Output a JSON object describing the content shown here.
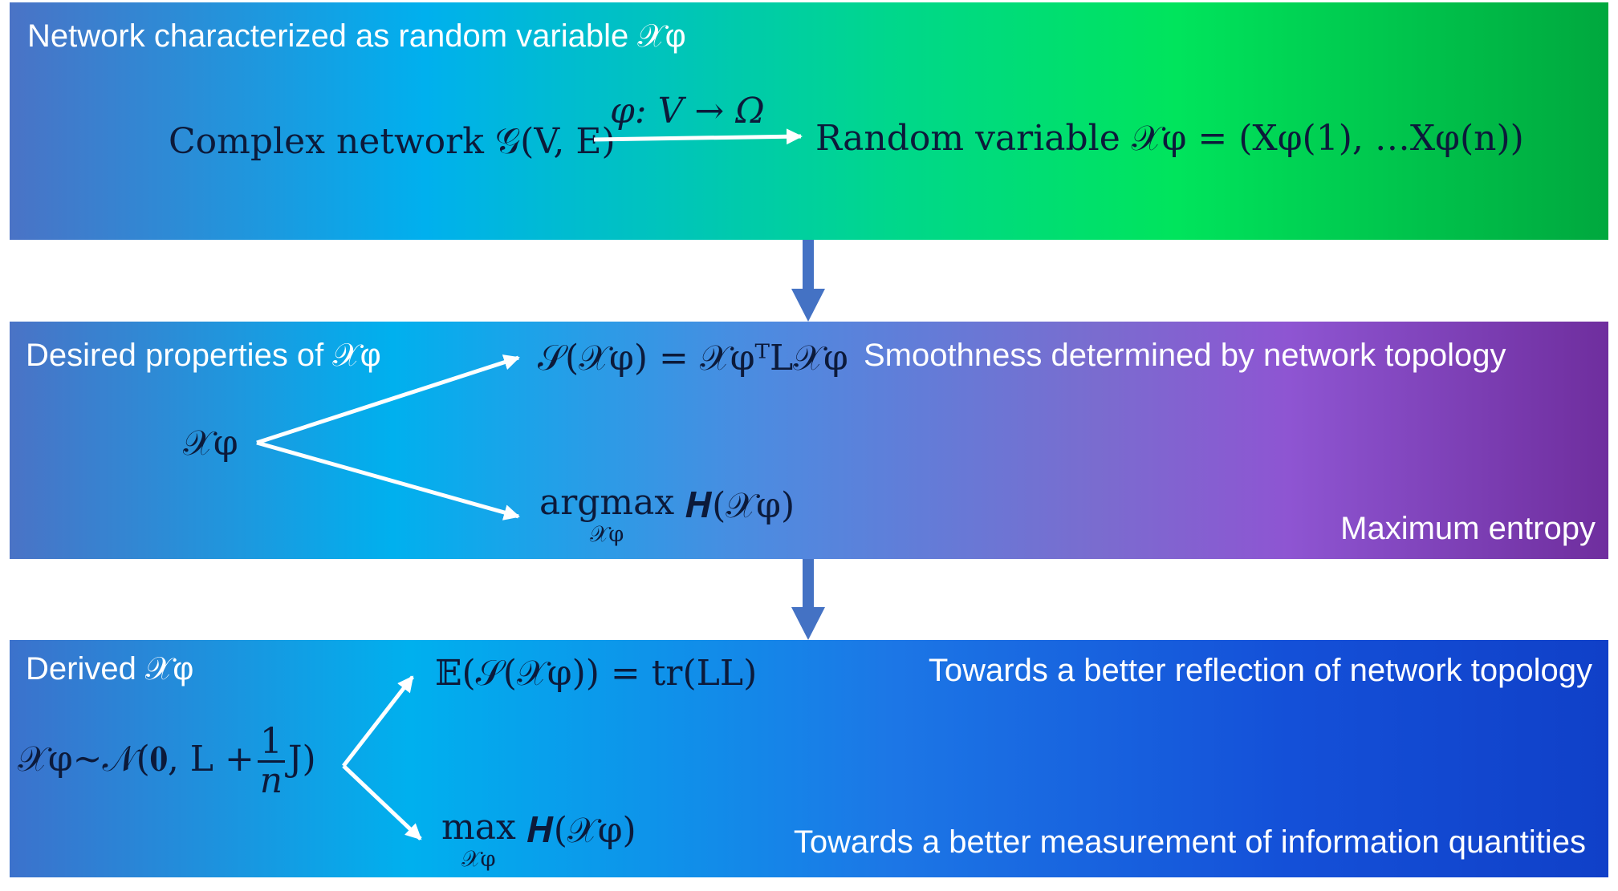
{
  "panel1": {
    "title": "Network characterized as random variable 𝒳φ",
    "left_text": "Complex network 𝒢(V, E)",
    "mapping": "φ: V → Ω",
    "right_text": "Random variable 𝒳φ = (Xφ(1), …Xφ(n))"
  },
  "panel2": {
    "title": "Desired properties of 𝒳φ",
    "source": "𝒳φ",
    "formula_top": "𝒮(𝒳φ) = 𝒳φᵀL𝒳φ",
    "label_top": "Smoothness determined by network topology",
    "formula_bottom_op": "argmax",
    "formula_bottom_under": "𝒳φ",
    "formula_bottom_rest": "𝑯(𝒳φ)",
    "label_bottom": "Maximum entropy"
  },
  "panel3": {
    "title": "Derived 𝒳φ",
    "source_formula_head": "𝒳φ~𝒩(𝟎, L +",
    "frac_num": "1",
    "frac_den": "n",
    "source_formula_tail": "J)",
    "formula_top": "𝔼(𝒮(𝒳φ)) = tr(LL)",
    "label_top": "Towards a better reflection of network topology",
    "formula_bottom_op": "max",
    "formula_bottom_under": "𝒳φ",
    "formula_bottom_rest": "𝑯(𝒳φ)",
    "label_bottom": "Towards a better measurement of  information quantities"
  },
  "colors": {
    "connector_arrow": "#4472c4",
    "text_light": "#ffffff",
    "text_dark": "#0c1a3a"
  }
}
